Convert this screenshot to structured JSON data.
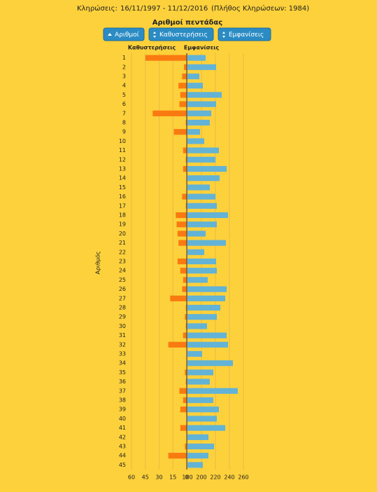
{
  "header": {
    "label": "Κληρώσεις:",
    "range": "16/11/1997 - 11/12/2016",
    "note": "(Πλήθος Κληρώσεων: 1984)"
  },
  "buttons": [
    "Αριθμοί",
    "Καθυστερήσεις",
    "Εμφανίσεις"
  ],
  "chart_data": {
    "type": "butterfly",
    "title": "Αριθμοί πεντάδας",
    "ylabel": "Αριθμός",
    "categories": [
      "1",
      "2",
      "3",
      "4",
      "5",
      "6",
      "7",
      "8",
      "9",
      "10",
      "11",
      "12",
      "13",
      "14",
      "15",
      "16",
      "17",
      "18",
      "19",
      "20",
      "21",
      "22",
      "23",
      "24",
      "25",
      "26",
      "27",
      "28",
      "29",
      "30",
      "31",
      "32",
      "33",
      "34",
      "35",
      "36",
      "37",
      "38",
      "39",
      "40",
      "41",
      "42",
      "43",
      "44",
      "45"
    ],
    "series": [
      {
        "name": "Καθυστερήσεις",
        "color": "#f97a10",
        "axis": "x",
        "values": [
          45,
          3,
          5,
          9,
          7,
          8,
          37,
          1,
          14,
          0,
          4,
          1,
          4,
          0,
          0,
          5,
          1,
          12,
          11,
          10,
          9,
          0,
          10,
          7,
          4,
          5,
          18,
          1,
          2,
          1,
          4,
          20,
          0,
          0,
          2,
          1,
          8,
          4,
          7,
          0,
          7,
          0,
          2,
          20,
          0
        ]
      },
      {
        "name": "Εμφανίσεις",
        "color": "#62b3d6",
        "axis": "x2",
        "values": [
          206,
          221,
          197,
          202,
          229,
          221,
          214,
          212,
          198,
          204,
          225,
          220,
          236,
          226,
          212,
          220,
          222,
          238,
          222,
          206,
          235,
          204,
          221,
          222,
          209,
          236,
          234,
          227,
          222,
          208,
          236,
          238,
          201,
          245,
          217,
          212,
          252,
          217,
          225,
          222,
          234,
          210,
          218,
          210,
          202
        ]
      }
    ],
    "xlim": [
      60,
      0
    ],
    "xticks": [
      60,
      45,
      30,
      15,
      0
    ],
    "x2lim": [
      180,
      270
    ],
    "x2ticks": [
      180,
      200,
      220,
      240,
      260
    ],
    "grid": true
  }
}
